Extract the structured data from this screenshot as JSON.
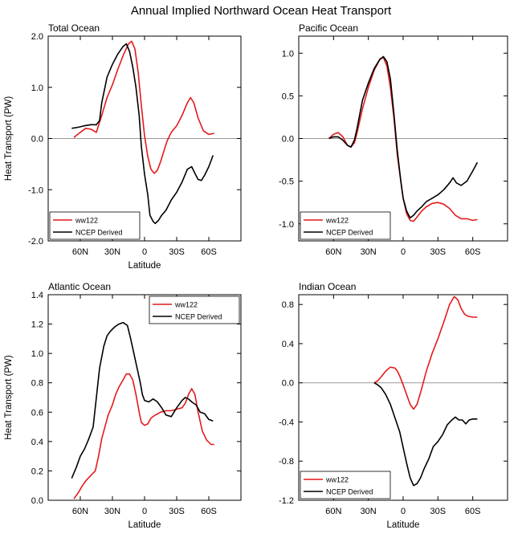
{
  "figure_title": "Annual Implied Northward Ocean Heat Transport",
  "colors": {
    "model": "#e41a1c",
    "obs": "#000000",
    "zero_line": "#999999"
  },
  "chart_data": [
    {
      "type": "line",
      "title": "Total Ocean",
      "xlabel": "Latitude",
      "ylabel": "Heat Transport (PW)",
      "xlim": [
        90,
        -90
      ],
      "ylim": [
        -2.0,
        2.0
      ],
      "xticks": [
        60,
        30,
        0,
        -30,
        -60
      ],
      "xtick_labels": [
        "60N",
        "30N",
        "0",
        "30S",
        "60S"
      ],
      "yticks": [
        2.0,
        1.0,
        0.0,
        -1.0,
        -2.0
      ],
      "ytick_labels": [
        "2.0",
        "1.0",
        "0.0",
        "-1.0",
        "-2.0"
      ],
      "zero_line": true,
      "legend": {
        "position": "bottom-left",
        "entries": [
          "ww122",
          "NCEP Derived"
        ]
      },
      "series": [
        {
          "name": "ww122",
          "color": "#e41a1c",
          "x": [
            66,
            60,
            55,
            50,
            45,
            40,
            35,
            30,
            25,
            20,
            15,
            12,
            9,
            6,
            3,
            0,
            -3,
            -6,
            -9,
            -12,
            -15,
            -18,
            -21,
            -25,
            -30,
            -35,
            -40,
            -43,
            -46,
            -50,
            -55,
            -60,
            -65
          ],
          "y": [
            0.02,
            0.12,
            0.2,
            0.18,
            0.12,
            0.45,
            0.8,
            1.05,
            1.35,
            1.62,
            1.85,
            1.9,
            1.75,
            1.3,
            0.65,
            0.05,
            -0.35,
            -0.6,
            -0.68,
            -0.62,
            -0.45,
            -0.25,
            -0.05,
            0.12,
            0.25,
            0.45,
            0.7,
            0.8,
            0.7,
            0.4,
            0.15,
            0.08,
            0.1
          ]
        },
        {
          "name": "NCEP Derived",
          "color": "#000000",
          "x": [
            68,
            62,
            56,
            50,
            45,
            42,
            40,
            37,
            35,
            30,
            25,
            20,
            17,
            14,
            11,
            8,
            5,
            3,
            0,
            -3,
            -5,
            -8,
            -10,
            -13,
            -16,
            -20,
            -25,
            -30,
            -35,
            -40,
            -44,
            -47,
            -50,
            -53,
            -56,
            -60,
            -64
          ],
          "y": [
            0.2,
            0.22,
            0.25,
            0.27,
            0.27,
            0.35,
            0.7,
            1.0,
            1.2,
            1.45,
            1.65,
            1.8,
            1.85,
            1.7,
            1.4,
            1.0,
            0.45,
            -0.15,
            -0.7,
            -1.1,
            -1.5,
            -1.62,
            -1.66,
            -1.6,
            -1.5,
            -1.4,
            -1.2,
            -1.05,
            -0.85,
            -0.6,
            -0.55,
            -0.68,
            -0.8,
            -0.82,
            -0.72,
            -0.55,
            -0.33
          ]
        }
      ]
    },
    {
      "type": "line",
      "title": "Pacific Ocean",
      "xlabel": "",
      "ylabel": "",
      "xlim": [
        90,
        -90
      ],
      "ylim": [
        -1.2,
        1.2
      ],
      "xticks": [
        60,
        30,
        0,
        -30,
        -60
      ],
      "xtick_labels": [
        "60N",
        "30N",
        "0",
        "30S",
        "60S"
      ],
      "yticks": [
        1.0,
        0.5,
        0.0,
        -0.5,
        -1.0
      ],
      "ytick_labels": [
        "1.0",
        "0.5",
        "0.0",
        "-0.5",
        "-1.0"
      ],
      "zero_line": true,
      "legend": {
        "position": "bottom-left",
        "entries": [
          "ww122",
          "NCEP Derived"
        ]
      },
      "series": [
        {
          "name": "ww122",
          "color": "#e41a1c",
          "x": [
            64,
            60,
            56,
            52,
            48,
            45,
            42,
            40,
            35,
            30,
            25,
            20,
            17,
            14,
            11,
            8,
            5,
            2,
            0,
            -3,
            -6,
            -9,
            -12,
            -16,
            -20,
            -25,
            -30,
            -35,
            -40,
            -45,
            -50,
            -55,
            -60,
            -64
          ],
          "y": [
            0.0,
            0.05,
            0.07,
            0.02,
            -0.08,
            -0.1,
            -0.05,
            0.05,
            0.35,
            0.6,
            0.8,
            0.93,
            0.95,
            0.85,
            0.6,
            0.25,
            -0.2,
            -0.5,
            -0.7,
            -0.88,
            -0.96,
            -0.97,
            -0.92,
            -0.85,
            -0.8,
            -0.76,
            -0.75,
            -0.77,
            -0.82,
            -0.9,
            -0.94,
            -0.94,
            -0.96,
            -0.95
          ]
        },
        {
          "name": "NCEP Derived",
          "color": "#000000",
          "x": [
            64,
            60,
            56,
            52,
            48,
            45,
            42,
            40,
            35,
            30,
            25,
            20,
            17,
            14,
            11,
            8,
            5,
            2,
            0,
            -3,
            -6,
            -9,
            -12,
            -16,
            -20,
            -25,
            -30,
            -35,
            -40,
            -43,
            -46,
            -50,
            -55,
            -60,
            -64
          ],
          "y": [
            0.0,
            0.02,
            0.02,
            -0.02,
            -0.08,
            -0.1,
            -0.02,
            0.1,
            0.45,
            0.65,
            0.82,
            0.93,
            0.96,
            0.9,
            0.7,
            0.3,
            -0.15,
            -0.5,
            -0.7,
            -0.85,
            -0.93,
            -0.9,
            -0.85,
            -0.8,
            -0.74,
            -0.7,
            -0.66,
            -0.6,
            -0.52,
            -0.46,
            -0.52,
            -0.55,
            -0.5,
            -0.38,
            -0.28
          ]
        }
      ]
    },
    {
      "type": "line",
      "title": "Atlantic Ocean",
      "xlabel": "Latitude",
      "ylabel": "Heat Transport (PW)",
      "xlim": [
        90,
        -90
      ],
      "ylim": [
        0.0,
        1.4
      ],
      "xticks": [
        60,
        30,
        0,
        -30,
        -60
      ],
      "xtick_labels": [
        "60N",
        "30N",
        "0",
        "30S",
        "60S"
      ],
      "yticks": [
        1.4,
        1.2,
        1.0,
        0.8,
        0.6,
        0.4,
        0.2,
        0.0
      ],
      "ytick_labels": [
        "1.4",
        "1.2",
        "1.0",
        "0.8",
        "0.6",
        "0.4",
        "0.2",
        "0.0"
      ],
      "zero_line": false,
      "legend": {
        "position": "top-right",
        "entries": [
          "ww122",
          "NCEP Derived"
        ]
      },
      "series": [
        {
          "name": "ww122",
          "color": "#e41a1c",
          "x": [
            66,
            62,
            58,
            54,
            50,
            46,
            43,
            40,
            37,
            34,
            30,
            27,
            24,
            20,
            17,
            14,
            11,
            8,
            5,
            3,
            0,
            -3,
            -6,
            -10,
            -15,
            -20,
            -25,
            -30,
            -35,
            -38,
            -41,
            -44,
            -47,
            -50,
            -54,
            -58,
            -62,
            -65
          ],
          "y": [
            0.01,
            0.05,
            0.1,
            0.14,
            0.17,
            0.2,
            0.3,
            0.42,
            0.5,
            0.58,
            0.65,
            0.72,
            0.77,
            0.82,
            0.86,
            0.86,
            0.82,
            0.72,
            0.6,
            0.53,
            0.51,
            0.52,
            0.56,
            0.58,
            0.6,
            0.61,
            0.61,
            0.62,
            0.63,
            0.66,
            0.72,
            0.76,
            0.72,
            0.6,
            0.47,
            0.41,
            0.38,
            0.38
          ]
        },
        {
          "name": "NCEP Derived",
          "color": "#000000",
          "x": [
            68,
            64,
            60,
            56,
            52,
            48,
            45,
            42,
            38,
            35,
            32,
            28,
            24,
            20,
            16,
            13,
            10,
            7,
            4,
            2,
            0,
            -4,
            -8,
            -12,
            -16,
            -20,
            -25,
            -30,
            -35,
            -38,
            -41,
            -44,
            -48,
            -52,
            -56,
            -60,
            -64
          ],
          "y": [
            0.15,
            0.22,
            0.3,
            0.35,
            0.42,
            0.5,
            0.7,
            0.9,
            1.05,
            1.12,
            1.15,
            1.18,
            1.2,
            1.21,
            1.19,
            1.1,
            1.0,
            0.9,
            0.8,
            0.72,
            0.68,
            0.67,
            0.69,
            0.67,
            0.63,
            0.58,
            0.57,
            0.63,
            0.68,
            0.7,
            0.69,
            0.67,
            0.65,
            0.6,
            0.59,
            0.55,
            0.54
          ]
        }
      ]
    },
    {
      "type": "line",
      "title": "Indian Ocean",
      "xlabel": "Latitude",
      "ylabel": "",
      "xlim": [
        90,
        -90
      ],
      "ylim": [
        -1.2,
        0.9
      ],
      "xticks": [
        60,
        30,
        0,
        -30,
        -60
      ],
      "xtick_labels": [
        "60N",
        "30N",
        "0",
        "30S",
        "60S"
      ],
      "yticks": [
        0.8,
        0.4,
        0.0,
        -0.4,
        -0.8,
        -1.2
      ],
      "ytick_labels": [
        "0.8",
        "0.4",
        "0.0",
        "-0.4",
        "-0.8",
        "-1.2"
      ],
      "zero_line": true,
      "legend": {
        "position": "bottom-left",
        "entries": [
          "ww122",
          "NCEP Derived"
        ]
      },
      "series": [
        {
          "name": "ww122",
          "color": "#e41a1c",
          "x": [
            25,
            22,
            19,
            15,
            11,
            7,
            5,
            3,
            0,
            -3,
            -6,
            -9,
            -12,
            -15,
            -20,
            -25,
            -30,
            -35,
            -40,
            -44,
            -47,
            -50,
            -53,
            -56,
            -60,
            -64
          ],
          "y": [
            0.0,
            0.02,
            0.06,
            0.12,
            0.16,
            0.15,
            0.12,
            0.07,
            -0.02,
            -0.12,
            -0.22,
            -0.27,
            -0.22,
            -0.1,
            0.12,
            0.3,
            0.45,
            0.62,
            0.8,
            0.88,
            0.85,
            0.76,
            0.7,
            0.68,
            0.67,
            0.67
          ]
        },
        {
          "name": "NCEP Derived",
          "color": "#000000",
          "x": [
            25,
            22,
            19,
            15,
            11,
            7,
            3,
            0,
            -3,
            -6,
            -9,
            -12,
            -15,
            -18,
            -22,
            -26,
            -30,
            -34,
            -38,
            -42,
            -45,
            -48,
            -51,
            -54,
            -57,
            -60,
            -64
          ],
          "y": [
            0.0,
            -0.02,
            -0.05,
            -0.12,
            -0.22,
            -0.36,
            -0.5,
            -0.66,
            -0.82,
            -0.97,
            -1.05,
            -1.03,
            -0.97,
            -0.88,
            -0.78,
            -0.65,
            -0.6,
            -0.53,
            -0.43,
            -0.38,
            -0.35,
            -0.38,
            -0.38,
            -0.42,
            -0.38,
            -0.37,
            -0.37
          ]
        }
      ]
    }
  ]
}
